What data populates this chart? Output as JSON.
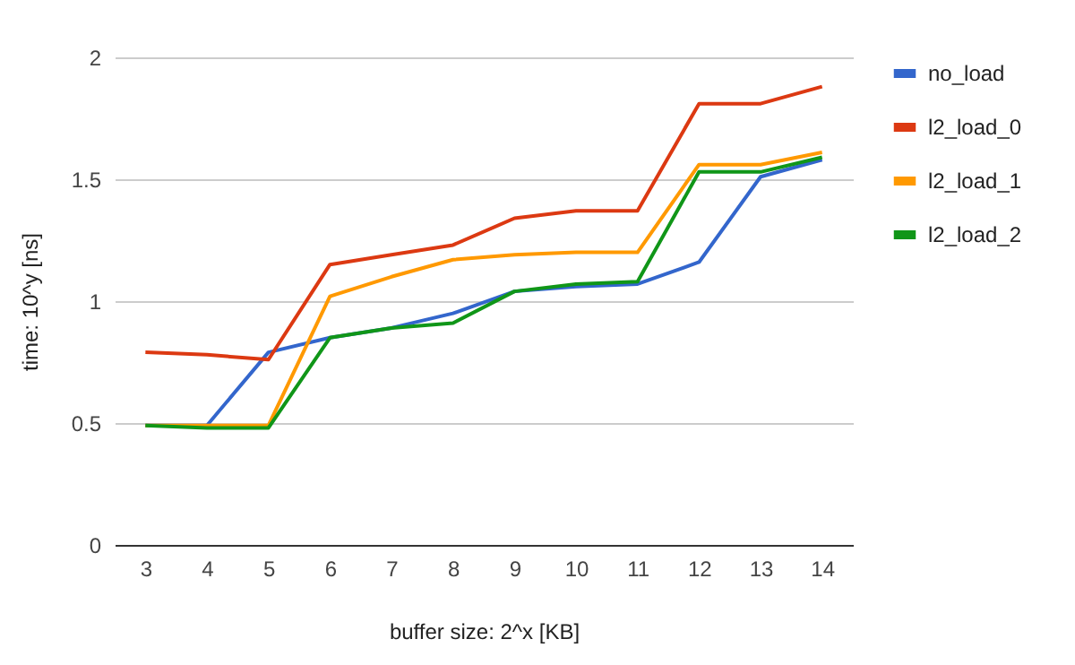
{
  "chart_data": {
    "type": "line",
    "xlabel": "buffer size: 2^x [KB]",
    "ylabel": "time: 10^y [ns]",
    "categories": [
      "3",
      "4",
      "5",
      "6",
      "7",
      "8",
      "9",
      "10",
      "11",
      "12",
      "13",
      "14"
    ],
    "series": [
      {
        "name": "no_load",
        "color": "#3366cc",
        "values": [
          0.49,
          0.49,
          0.79,
          0.85,
          0.89,
          0.95,
          1.04,
          1.06,
          1.07,
          1.16,
          1.51,
          1.58
        ]
      },
      {
        "name": "l2_load_0",
        "color": "#dc3912",
        "values": [
          0.79,
          0.78,
          0.76,
          1.15,
          1.19,
          1.23,
          1.34,
          1.37,
          1.37,
          1.81,
          1.81,
          1.88
        ]
      },
      {
        "name": "l2_load_1",
        "color": "#ff9900",
        "values": [
          0.49,
          0.49,
          0.49,
          1.02,
          1.1,
          1.17,
          1.19,
          1.2,
          1.2,
          1.56,
          1.56,
          1.61
        ]
      },
      {
        "name": "l2_load_2",
        "color": "#109618",
        "values": [
          0.49,
          0.48,
          0.48,
          0.85,
          0.89,
          0.91,
          1.04,
          1.07,
          1.08,
          1.53,
          1.53,
          1.59
        ]
      }
    ],
    "ylim": [
      0,
      2
    ],
    "yticks": [
      0,
      0.5,
      1,
      1.5,
      2
    ],
    "grid": "y",
    "legend": "right",
    "marker": "none",
    "line_style": "solid"
  }
}
